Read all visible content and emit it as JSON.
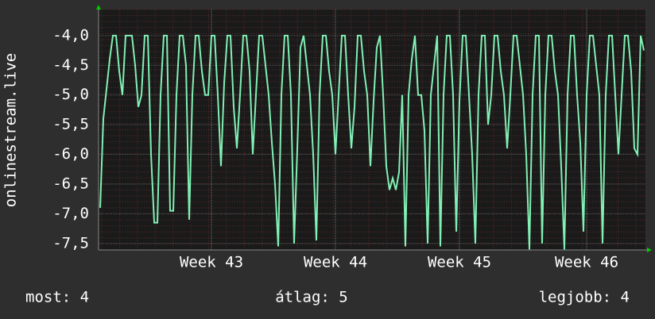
{
  "chart_data": {
    "type": "line",
    "y_axis_label": "onlinestream.live",
    "categories": [
      null,
      null,
      null,
      null,
      null,
      null,
      null,
      null,
      null,
      null,
      null,
      null,
      null,
      null,
      null,
      null,
      null,
      null,
      null,
      null,
      null,
      null,
      null,
      null,
      null,
      null,
      null,
      null,
      null,
      null,
      null,
      null,
      null,
      null,
      null,
      "Week 43",
      null,
      null,
      null,
      null,
      null,
      null,
      null,
      null,
      null,
      null,
      null,
      null,
      null,
      null,
      null,
      null,
      null,
      null,
      null,
      null,
      null,
      null,
      null,
      null,
      null,
      null,
      null,
      null,
      null,
      null,
      null,
      null,
      null,
      null,
      null,
      null,
      null,
      null,
      "Week 44",
      null,
      null,
      null,
      null,
      null,
      null,
      null,
      null,
      null,
      null,
      null,
      null,
      null,
      null,
      null,
      null,
      null,
      null,
      null,
      null,
      null,
      null,
      null,
      null,
      null,
      null,
      null,
      null,
      null,
      null,
      null,
      null,
      null,
      null,
      null,
      null,
      null,
      null,
      "Week 45",
      null,
      null,
      null,
      null,
      null,
      null,
      null,
      null,
      null,
      null,
      null,
      null,
      null,
      null,
      null,
      null,
      null,
      null,
      null,
      null,
      null,
      null,
      null,
      null,
      null,
      null,
      null,
      null,
      null,
      null,
      null,
      null,
      null,
      null,
      null,
      null,
      null,
      null,
      null,
      "Week 46",
      null,
      null,
      null,
      null,
      null,
      null,
      null,
      null,
      null,
      null,
      null,
      null,
      null,
      null,
      null,
      null,
      null,
      null
    ],
    "series": [
      {
        "name": "onlinestream.live",
        "color": "#80f0b4",
        "values": [
          -6.9,
          -5.4,
          -4.9,
          -4.4,
          -4.0,
          -4.0,
          -4.6,
          -5.0,
          -4.0,
          -4.0,
          -4.0,
          -4.5,
          -5.2,
          -5.0,
          -4.0,
          -4.0,
          -6.0,
          -7.15,
          -7.15,
          -5.0,
          -4.0,
          -4.0,
          -6.95,
          -6.95,
          -5.0,
          -4.0,
          -4.0,
          -4.5,
          -7.1,
          -5.0,
          -4.0,
          -4.0,
          -4.6,
          -5.0,
          -5.0,
          -4.0,
          -4.0,
          -5.0,
          -6.2,
          -4.8,
          -4.0,
          -4.0,
          -5.2,
          -5.9,
          -5.0,
          -4.0,
          -4.0,
          -4.6,
          -6.0,
          -5.0,
          -4.0,
          -4.0,
          -4.5,
          -5.0,
          -5.8,
          -6.5,
          -7.55,
          -5.0,
          -4.0,
          -4.0,
          -5.0,
          -7.5,
          -5.9,
          -4.2,
          -4.0,
          -4.5,
          -5.0,
          -6.0,
          -7.45,
          -5.0,
          -4.0,
          -4.0,
          -4.6,
          -5.0,
          -6.0,
          -5.0,
          -4.0,
          -4.0,
          -5.0,
          -5.9,
          -5.2,
          -4.0,
          -4.0,
          -4.6,
          -5.0,
          -6.2,
          -5.1,
          -4.2,
          -4.0,
          -5.0,
          -6.2,
          -6.6,
          -6.4,
          -6.6,
          -6.3,
          -5.0,
          -7.55,
          -5.0,
          -4.4,
          -4.0,
          -5.0,
          -5.0,
          -5.6,
          -7.5,
          -5.0,
          -4.5,
          -4.0,
          -7.55,
          -5.0,
          -4.0,
          -4.0,
          -5.0,
          -7.3,
          -5.1,
          -4.0,
          -4.0,
          -5.0,
          -6.0,
          -7.5,
          -5.0,
          -4.0,
          -4.0,
          -5.5,
          -5.0,
          -4.0,
          -4.0,
          -4.6,
          -5.0,
          -5.9,
          -5.0,
          -4.0,
          -4.0,
          -4.5,
          -5.0,
          -6.0,
          -7.6,
          -5.0,
          -4.0,
          -4.0,
          -7.5,
          -5.0,
          -4.0,
          -4.0,
          -4.6,
          -5.0,
          -6.2,
          -7.6,
          -5.0,
          -4.0,
          -4.0,
          -5.0,
          -5.8,
          -7.3,
          -5.0,
          -4.0,
          -4.0,
          -4.5,
          -5.0,
          -7.5,
          -5.0,
          -4.0,
          -4.0,
          -5.0,
          -6.0,
          -5.0,
          -4.0,
          -4.0,
          -4.6,
          -5.9,
          -6.0,
          -4.0,
          -4.25
        ]
      }
    ],
    "ylim": [
      -7.61,
      -3.56
    ],
    "yticks": [
      {
        "value": -4.0,
        "label": "-4,0"
      },
      {
        "value": -4.5,
        "label": "-4,5"
      },
      {
        "value": -5.0,
        "label": "-5,0"
      },
      {
        "value": -5.5,
        "label": "-5,5"
      },
      {
        "value": -6.0,
        "label": "-6,0"
      },
      {
        "value": -6.5,
        "label": "-6,5"
      },
      {
        "value": -7.0,
        "label": "-7,0"
      },
      {
        "value": -7.5,
        "label": "-7,5"
      }
    ],
    "grid": true,
    "footer": [
      "most: 4",
      "átlag: 5",
      "legjobb: 4"
    ]
  }
}
